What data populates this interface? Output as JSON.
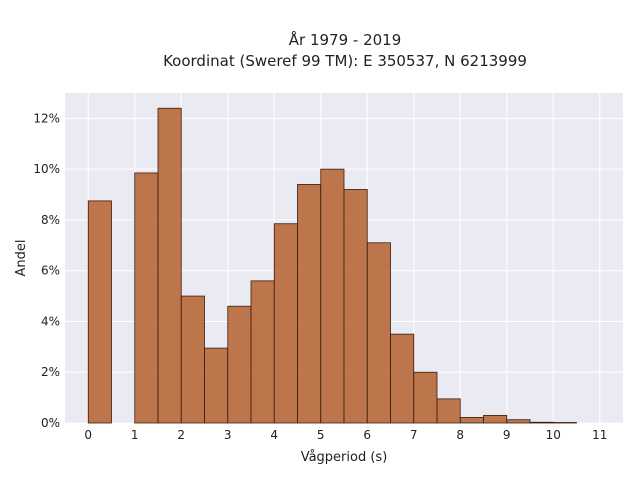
{
  "chart_data": {
    "type": "bar",
    "title": "År 1979 - 2019",
    "subtitle": "Koordinat (Sweref 99 TM): E 350537, N 6213999",
    "xlabel": "Vågperiod (s)",
    "ylabel": "Andel",
    "xlim": [
      -0.5,
      11.5
    ],
    "ylim": [
      0,
      13
    ],
    "grid": true,
    "x_ticks": [
      0,
      1,
      2,
      3,
      4,
      5,
      6,
      7,
      8,
      9,
      10,
      11
    ],
    "y_ticks": [
      0,
      2,
      4,
      6,
      8,
      10,
      12
    ],
    "y_tick_suffix": "%",
    "bin_width": 0.5,
    "bins": [
      {
        "x0": 0.0,
        "value": 8.75
      },
      {
        "x0": 0.5,
        "value": 0.0
      },
      {
        "x0": 1.0,
        "value": 9.85
      },
      {
        "x0": 1.5,
        "value": 12.4
      },
      {
        "x0": 2.0,
        "value": 5.0
      },
      {
        "x0": 2.5,
        "value": 2.95
      },
      {
        "x0": 3.0,
        "value": 4.6
      },
      {
        "x0": 3.5,
        "value": 5.6
      },
      {
        "x0": 4.0,
        "value": 7.85
      },
      {
        "x0": 4.5,
        "value": 9.4
      },
      {
        "x0": 5.0,
        "value": 10.0
      },
      {
        "x0": 5.5,
        "value": 9.2
      },
      {
        "x0": 6.0,
        "value": 7.1
      },
      {
        "x0": 6.5,
        "value": 3.5
      },
      {
        "x0": 7.0,
        "value": 2.0
      },
      {
        "x0": 7.5,
        "value": 0.95
      },
      {
        "x0": 8.0,
        "value": 0.22
      },
      {
        "x0": 8.5,
        "value": 0.3
      },
      {
        "x0": 9.0,
        "value": 0.13
      },
      {
        "x0": 9.5,
        "value": 0.03
      },
      {
        "x0": 10.0,
        "value": 0.02
      }
    ],
    "colors": {
      "bar_fill": "#b5612f",
      "bar_edge": "#3a1d0d",
      "plot_background": "#eaeaf2",
      "grid": "#ffffff"
    }
  }
}
